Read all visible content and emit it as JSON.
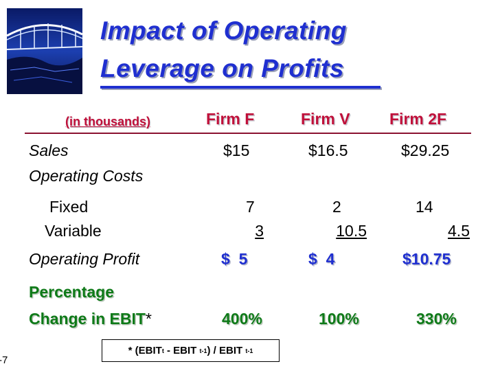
{
  "slide": {
    "title_line1": "Impact of Operating",
    "title_line2": "Leverage on Profits",
    "units_note": "(in thousands)",
    "firms": [
      "Firm F",
      "Firm V",
      "Firm 2F"
    ],
    "rows": {
      "sales": {
        "label": "Sales",
        "values": [
          "$15",
          "$16.5",
          "$29.25"
        ]
      },
      "operating_costs": {
        "label": "Operating Costs"
      },
      "fixed": {
        "label": "Fixed",
        "values": [
          "7",
          "2",
          "14"
        ]
      },
      "variable": {
        "label": "Variable",
        "values": [
          "3",
          "10.5",
          "4.5"
        ]
      },
      "operating_profit": {
        "label": "Operating Profit",
        "values": [
          "$  5",
          "$  4",
          "$10.75"
        ]
      },
      "percentage_label": "Percentage",
      "change_label": "Change in EBIT",
      "change_asterisk": "*",
      "change_values": [
        "400%",
        "100%",
        "330%"
      ]
    },
    "footnote": {
      "prefix": "* (EBIT",
      "sub1": "t",
      "mid": " - EBIT ",
      "sub2": "t-1",
      "close": ") / EBIT ",
      "sub3": "t-1"
    },
    "slide_number": "-7"
  },
  "colors": {
    "title_blue": "#1f2fd0",
    "header_red": "#c0103a",
    "ebit_green": "#0e7a18"
  }
}
